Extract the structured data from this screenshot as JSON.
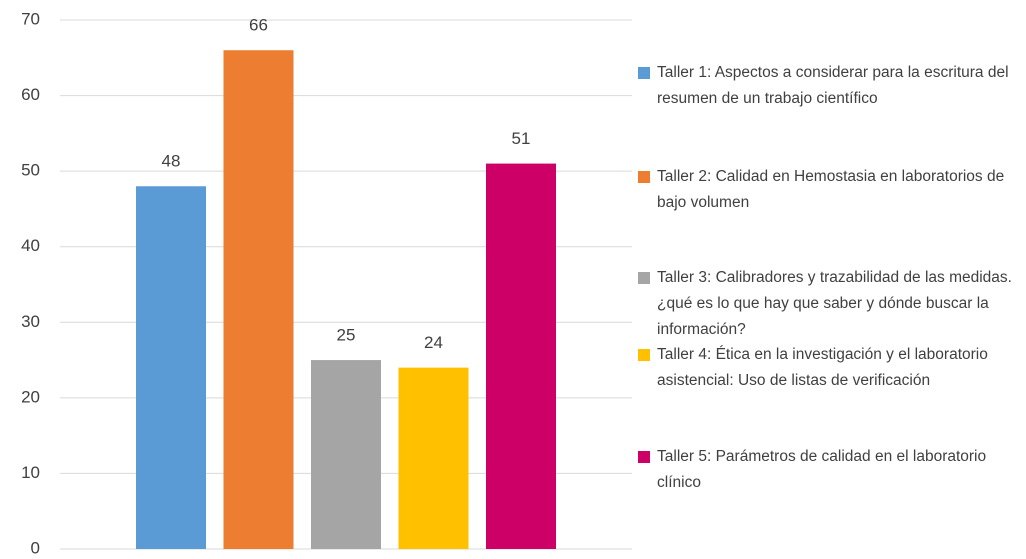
{
  "chart_data": {
    "type": "bar",
    "categories": [
      null
    ],
    "series": [
      {
        "name": "Taller 1:  Aspectos a considerar para la escritura del resumen de un trabajo científico",
        "color": "#5b9bd5",
        "values": [
          48
        ]
      },
      {
        "name": "Taller 2: Calidad en Hemostasia en laboratorios de bajo volumen",
        "color": "#ed7d31",
        "values": [
          66
        ]
      },
      {
        "name": "Taller 3: Calibradores y trazabilidad de las medidas. ¿qué es lo que hay que saber y dónde buscar la información?",
        "color": "#a5a5a5",
        "values": [
          25
        ]
      },
      {
        "name": "Taller 4: Ética en la investigación y el laboratorio asistencial: Uso de listas de verificación",
        "color": "#ffc000",
        "values": [
          24
        ]
      },
      {
        "name": "Taller 5: Parámetros de calidad en el laboratorio clínico",
        "color": "#cc0066",
        "values": [
          51
        ]
      }
    ],
    "ylim": [
      0,
      70
    ],
    "yticks": [
      0,
      10,
      20,
      30,
      40,
      50,
      60,
      70
    ],
    "grid": true,
    "legend": "right"
  }
}
